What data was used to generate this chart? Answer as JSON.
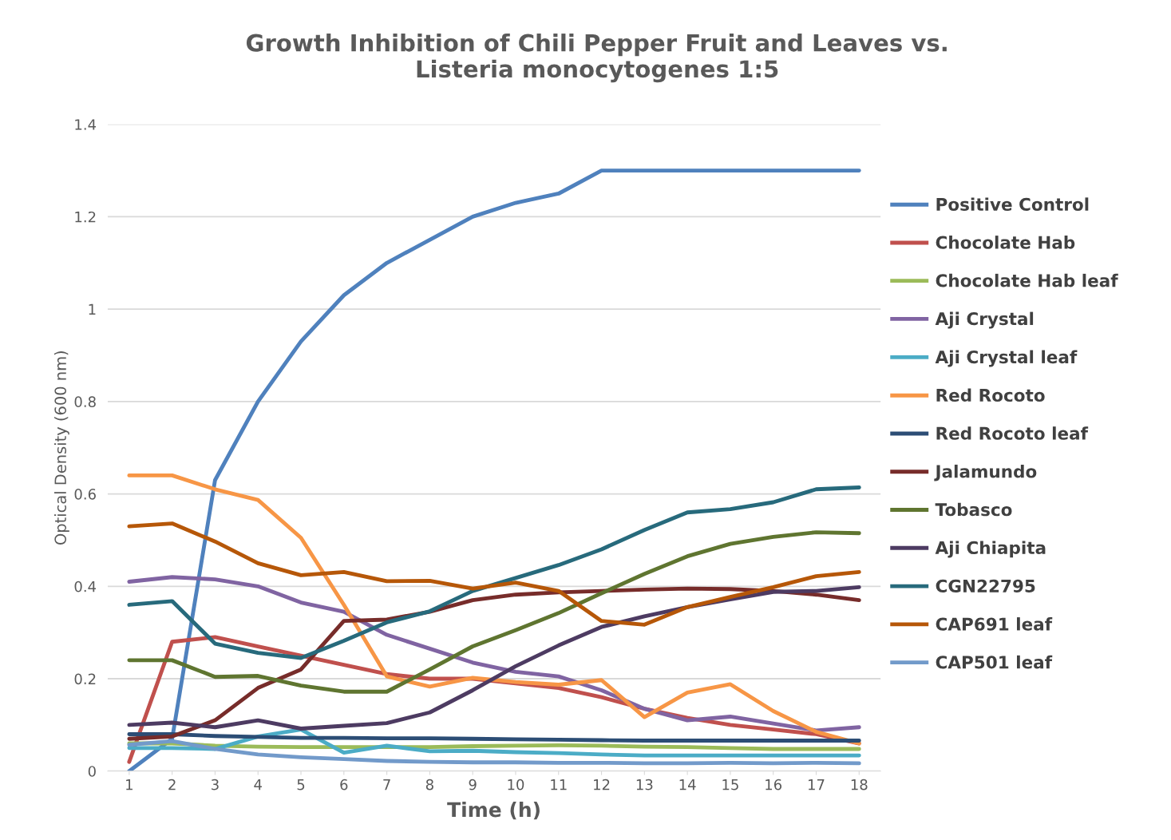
{
  "chart_data": {
    "type": "line",
    "title": "Growth Inhibition of Chili Pepper Fruit and Leaves vs. Listeria monocytogenes 1:5",
    "xlabel": "Time (h)",
    "ylabel": "Optical Density (600 nm)",
    "categories": [
      "1",
      "2",
      "3",
      "4",
      "5",
      "6",
      "7",
      "8",
      "9",
      "10",
      "11",
      "12",
      "13",
      "14",
      "15",
      "16",
      "17",
      "18"
    ],
    "ylim": [
      0,
      1.4
    ],
    "yticks": [
      0,
      0.2,
      0.4,
      0.6,
      0.8,
      1,
      1.2,
      1.4
    ],
    "grid": "y",
    "legend": "right",
    "marker": "none",
    "line_style": "solid",
    "series": [
      {
        "name": "Positive Control",
        "color": "#4f81bd",
        "values": [
          0,
          0.07,
          0.63,
          0.8,
          0.93,
          1.03,
          1.1,
          1.15,
          1.2,
          1.23,
          1.25,
          1.3,
          1.3,
          1.3,
          1.3,
          1.3,
          1.3,
          1.3
        ]
      },
      {
        "name": "Chocolate Hab",
        "color": "#c0504d",
        "values": [
          0.02,
          0.28,
          0.29,
          0.27,
          0.25,
          0.23,
          0.21,
          0.2,
          0.2,
          0.19,
          0.18,
          0.16,
          0.135,
          0.115,
          0.1,
          0.09,
          0.08,
          0.06
        ]
      },
      {
        "name": "Chocolate Hab leaf",
        "color": "#9bbb59",
        "values": [
          0.06,
          0.06,
          0.055,
          0.053,
          0.052,
          0.052,
          0.052,
          0.052,
          0.054,
          0.055,
          0.056,
          0.055,
          0.053,
          0.052,
          0.05,
          0.048,
          0.048,
          0.048
        ]
      },
      {
        "name": "Aji Crystal",
        "color": "#8064a2",
        "values": [
          0.41,
          0.42,
          0.415,
          0.4,
          0.365,
          0.345,
          0.295,
          0.265,
          0.235,
          0.215,
          0.205,
          0.175,
          0.135,
          0.11,
          0.118,
          0.103,
          0.088,
          0.095
        ]
      },
      {
        "name": "Aji Crystal leaf",
        "color": "#4bacc6",
        "values": [
          0.05,
          0.05,
          0.048,
          0.075,
          0.09,
          0.04,
          0.055,
          0.043,
          0.044,
          0.041,
          0.039,
          0.036,
          0.034,
          0.034,
          0.034,
          0.034,
          0.034,
          0.034
        ]
      },
      {
        "name": "Red Rocoto",
        "color": "#f79646",
        "values": [
          0.64,
          0.64,
          0.61,
          0.587,
          0.505,
          0.36,
          0.205,
          0.183,
          0.202,
          0.193,
          0.187,
          0.197,
          0.117,
          0.17,
          0.188,
          0.13,
          0.085,
          0.06
        ]
      },
      {
        "name": "Red Rocoto leaf",
        "color": "#2c4d75",
        "values": [
          0.08,
          0.08,
          0.076,
          0.074,
          0.072,
          0.072,
          0.071,
          0.071,
          0.07,
          0.069,
          0.068,
          0.067,
          0.066,
          0.066,
          0.066,
          0.066,
          0.066,
          0.066
        ]
      },
      {
        "name": "Jalamundo",
        "color": "#772c2a",
        "values": [
          0.07,
          0.075,
          0.11,
          0.18,
          0.22,
          0.325,
          0.328,
          0.345,
          0.37,
          0.382,
          0.387,
          0.39,
          0.393,
          0.395,
          0.394,
          0.39,
          0.382,
          0.37
        ]
      },
      {
        "name": "Tobasco",
        "color": "#5f7530",
        "values": [
          0.24,
          0.24,
          0.204,
          0.206,
          0.185,
          0.172,
          0.172,
          0.22,
          0.27,
          0.305,
          0.342,
          0.385,
          0.427,
          0.465,
          0.492,
          0.507,
          0.517,
          0.515
        ]
      },
      {
        "name": "Aji Chiapita",
        "color": "#4d3b62",
        "values": [
          0.1,
          0.105,
          0.095,
          0.11,
          0.092,
          0.098,
          0.104,
          0.127,
          0.175,
          0.227,
          0.272,
          0.312,
          0.335,
          0.355,
          0.372,
          0.388,
          0.39,
          0.398
        ]
      },
      {
        "name": "CGN22795",
        "color": "#276a7c",
        "values": [
          0.36,
          0.368,
          0.276,
          0.256,
          0.245,
          0.282,
          0.322,
          0.346,
          0.39,
          0.418,
          0.446,
          0.48,
          0.522,
          0.56,
          0.567,
          0.582,
          0.61,
          0.614
        ]
      },
      {
        "name": "CAP691 leaf",
        "color": "#b65708",
        "values": [
          0.53,
          0.536,
          0.497,
          0.45,
          0.424,
          0.431,
          0.411,
          0.412,
          0.395,
          0.408,
          0.39,
          0.325,
          0.317,
          0.355,
          0.377,
          0.398,
          0.422,
          0.431
        ]
      },
      {
        "name": "CAP501 leaf",
        "color": "#729aca",
        "values": [
          0.057,
          0.065,
          0.048,
          0.036,
          0.03,
          0.026,
          0.022,
          0.02,
          0.019,
          0.019,
          0.018,
          0.018,
          0.017,
          0.017,
          0.018,
          0.017,
          0.018,
          0.017
        ]
      }
    ]
  }
}
